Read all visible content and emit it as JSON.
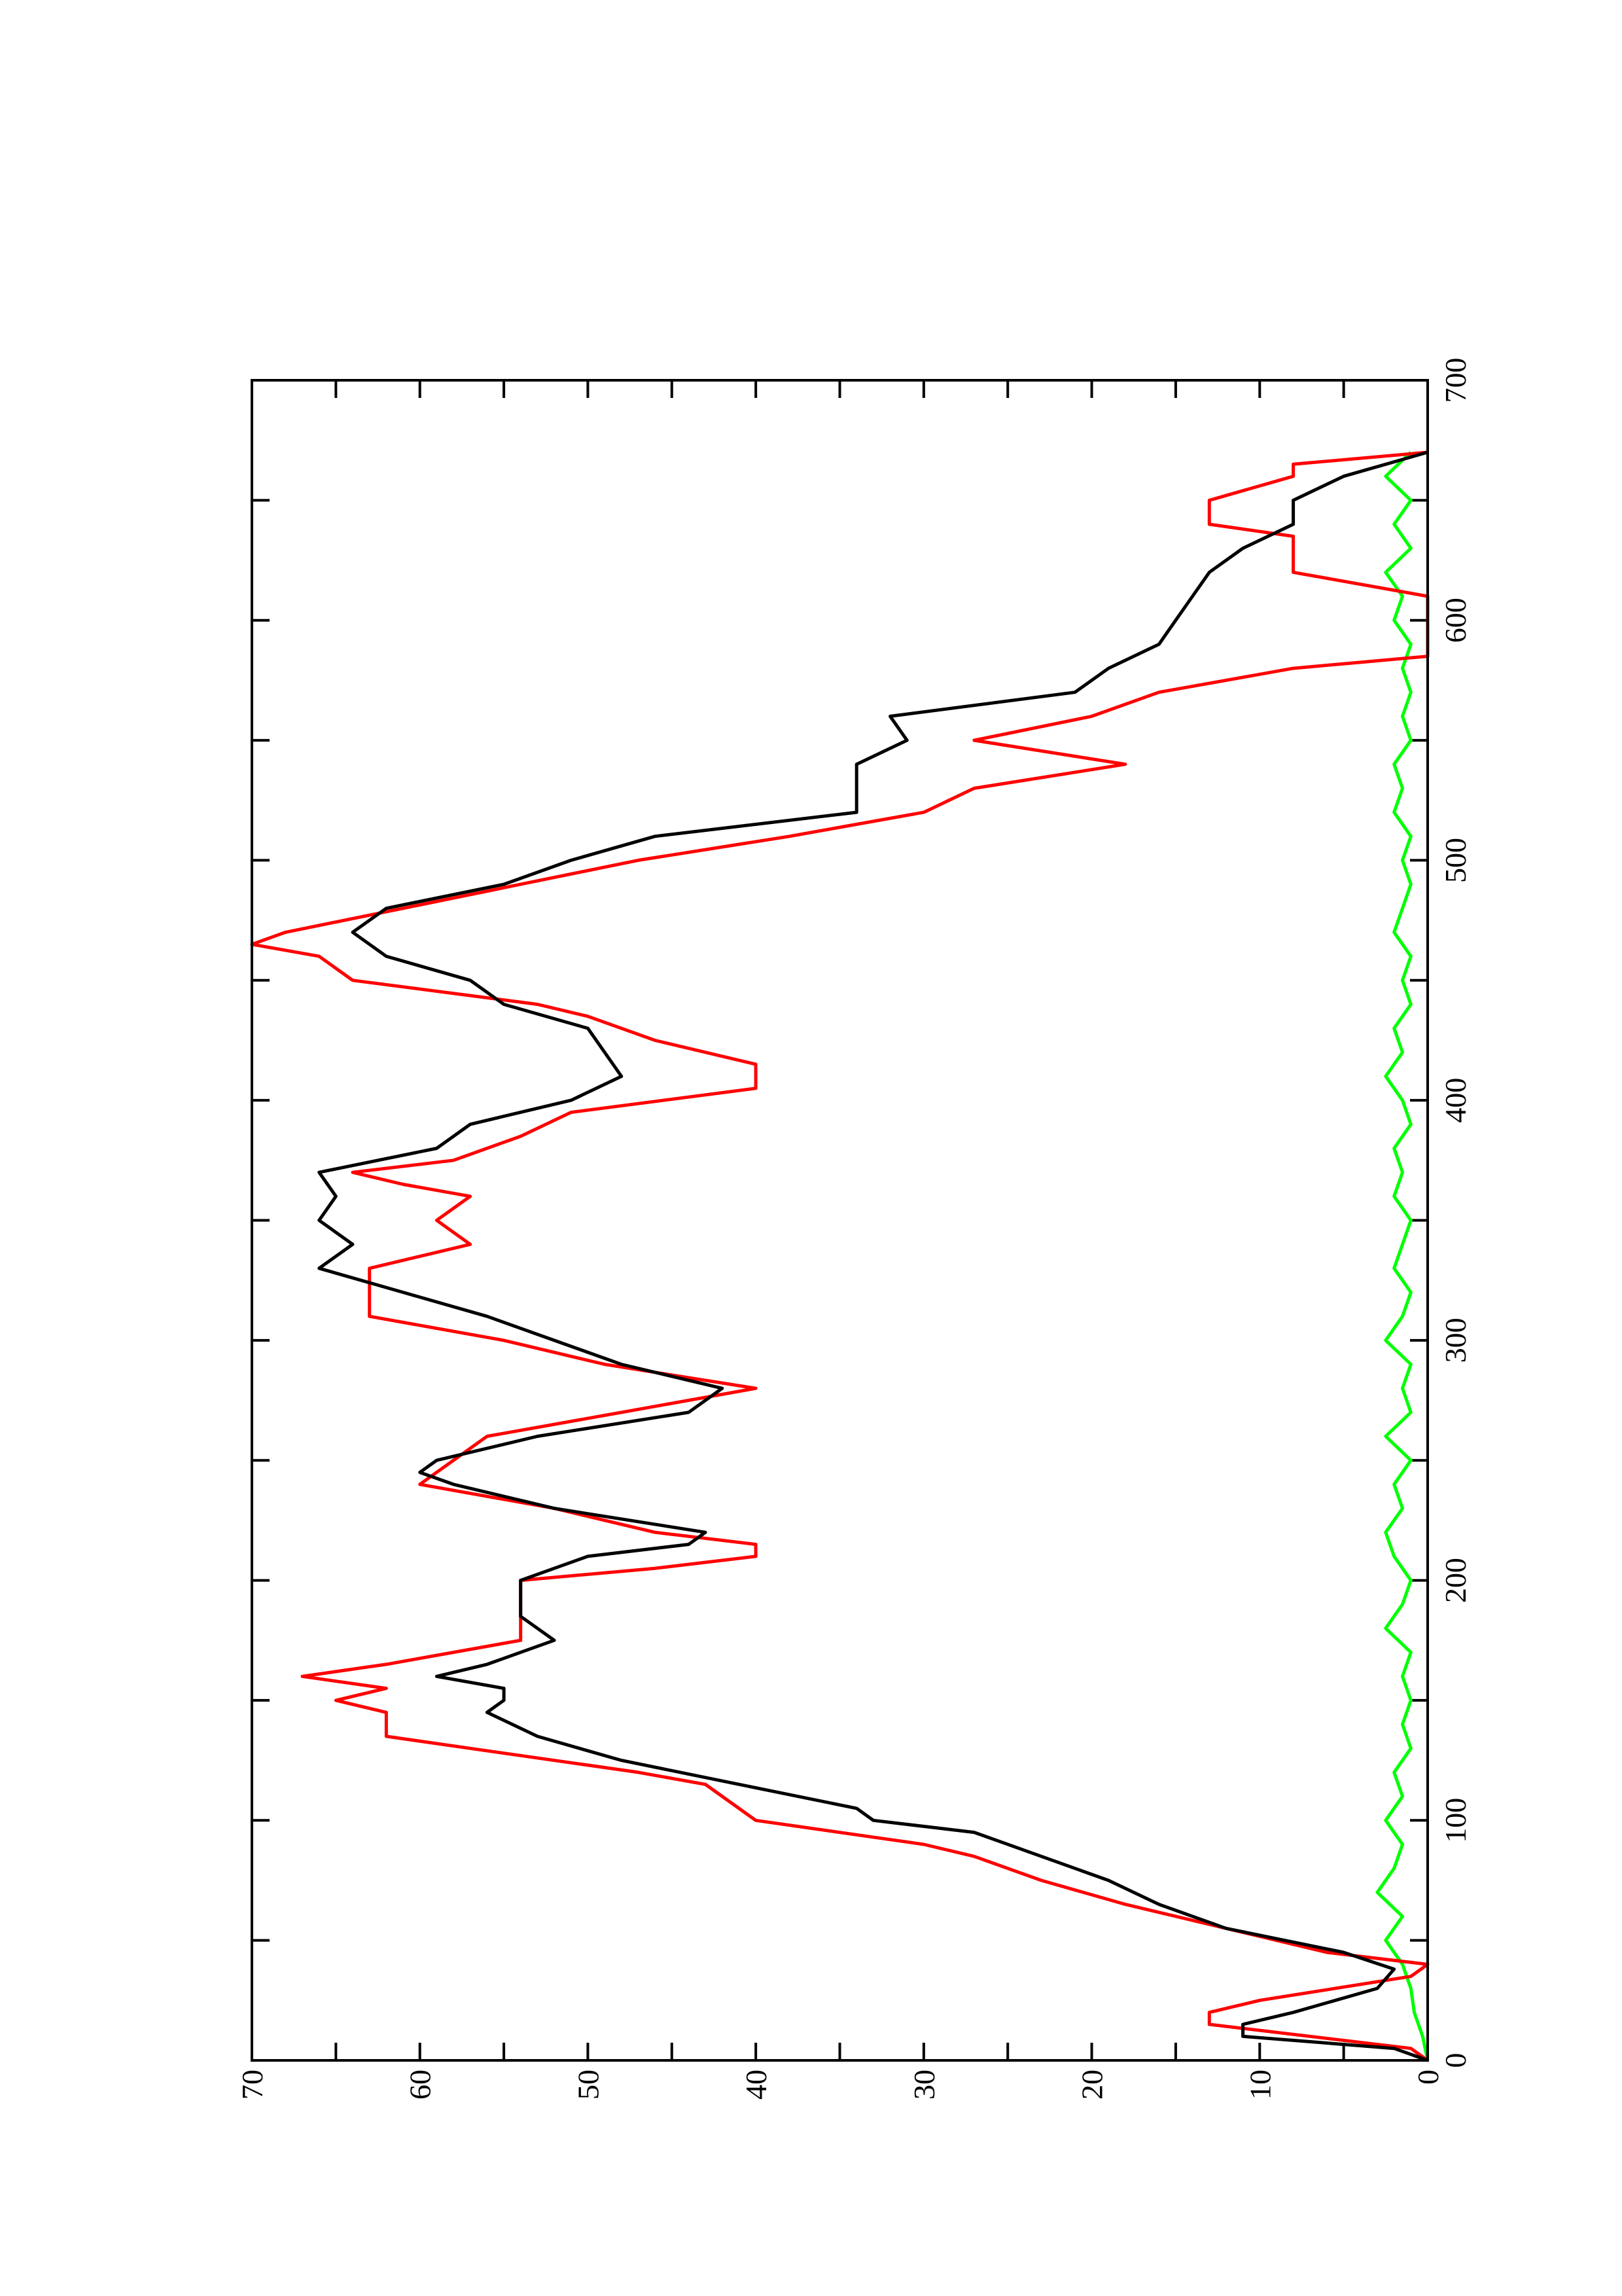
{
  "chart_data": {
    "type": "line",
    "xlim": [
      0,
      700
    ],
    "xticks": [
      0,
      100,
      200,
      300,
      400,
      500,
      600,
      700
    ],
    "xminor": [
      50,
      150,
      250,
      350,
      450,
      550,
      650
    ],
    "ylim": [
      0,
      70
    ],
    "yticks": [
      0,
      10,
      20,
      30,
      40,
      50,
      60,
      70
    ],
    "yminor": [
      5,
      15,
      25,
      35,
      45,
      55,
      65
    ],
    "series": [
      {
        "color": "#000000",
        "x": [
          0,
          5,
          10,
          15,
          20,
          30,
          38,
          45,
          55,
          65,
          75,
          85,
          95,
          100,
          105,
          115,
          125,
          135,
          145,
          150,
          155,
          160,
          165,
          175,
          185,
          200,
          210,
          215,
          220,
          230,
          240,
          245,
          250,
          260,
          270,
          280,
          290,
          300,
          310,
          320,
          330,
          340,
          350,
          360,
          370,
          380,
          390,
          400,
          410,
          420,
          430,
          440,
          450,
          460,
          470,
          480,
          490,
          500,
          510,
          520,
          530,
          540,
          550,
          560,
          570,
          580,
          590,
          600,
          610,
          620,
          630,
          640,
          650,
          660,
          670
        ],
        "values": [
          0,
          2,
          11,
          11,
          8,
          3,
          2,
          5,
          12,
          16,
          19,
          23,
          27,
          33,
          34,
          41,
          48,
          53,
          56,
          55,
          55,
          59,
          56,
          52,
          54,
          54,
          50,
          44,
          43,
          52,
          58,
          60,
          59,
          53,
          44,
          42,
          48,
          52,
          56,
          61,
          66,
          64,
          66,
          65,
          66,
          59,
          57,
          51,
          48,
          49,
          50,
          55,
          57,
          62,
          64,
          62,
          55,
          51,
          46,
          34,
          34,
          34,
          31,
          32,
          21,
          19,
          16,
          15,
          14,
          13,
          11,
          8,
          8,
          5,
          0
        ]
      },
      {
        "color": "#ff0000",
        "x": [
          0,
          5,
          15,
          20,
          25,
          35,
          40,
          45,
          55,
          65,
          75,
          85,
          90,
          100,
          115,
          120,
          130,
          135,
          145,
          150,
          155,
          160,
          165,
          175,
          185,
          200,
          205,
          210,
          215,
          220,
          230,
          240,
          250,
          260,
          270,
          280,
          290,
          300,
          310,
          320,
          330,
          340,
          350,
          360,
          365,
          370,
          375,
          385,
          395,
          405,
          415,
          425,
          435,
          440,
          450,
          460,
          465,
          470,
          480,
          490,
          500,
          510,
          520,
          530,
          540,
          550,
          560,
          570,
          580,
          585,
          610,
          620,
          635,
          640,
          650,
          660,
          665,
          670
        ],
        "values": [
          0,
          1,
          13,
          13,
          10,
          1,
          0,
          6,
          12,
          18,
          23,
          27,
          30,
          40,
          43,
          47,
          57,
          62,
          62,
          65,
          62,
          67,
          62,
          54,
          54,
          54,
          46,
          40,
          40,
          46,
          52,
          60,
          58,
          56,
          48,
          40,
          49,
          55,
          63,
          63,
          63,
          57,
          59,
          57,
          61,
          64,
          58,
          54,
          51,
          40,
          40,
          46,
          50,
          53,
          64,
          66,
          70,
          68,
          61,
          54,
          47,
          38,
          30,
          27,
          18,
          27,
          20,
          16,
          8,
          0,
          0,
          8,
          8,
          13,
          13,
          8,
          8,
          0
        ]
      },
      {
        "color": "#00ff00",
        "x": [
          0,
          10,
          20,
          30,
          40,
          50,
          60,
          70,
          80,
          90,
          100,
          110,
          120,
          130,
          140,
          150,
          160,
          170,
          180,
          190,
          200,
          210,
          220,
          230,
          240,
          250,
          260,
          270,
          280,
          290,
          300,
          310,
          320,
          330,
          340,
          350,
          360,
          370,
          380,
          390,
          400,
          410,
          420,
          430,
          440,
          450,
          460,
          470,
          480,
          490,
          500,
          510,
          520,
          530,
          540,
          550,
          560,
          570,
          580,
          590,
          600,
          610,
          620,
          630,
          640,
          650,
          660,
          670
        ],
        "values": [
          0,
          0.3,
          0.8,
          1,
          1.5,
          2.5,
          1.5,
          3,
          2,
          1.5,
          2.5,
          1.5,
          2,
          1,
          1.5,
          1,
          1.5,
          1,
          2.5,
          1.5,
          1,
          2,
          2.5,
          1.5,
          2,
          1,
          2.5,
          1,
          1.5,
          1,
          2.5,
          1.5,
          1,
          2,
          1.5,
          1,
          2,
          1.5,
          2,
          1,
          1.5,
          2.5,
          1.5,
          2,
          1,
          1.5,
          1,
          2,
          1.5,
          1,
          1.5,
          1,
          2,
          1.5,
          2,
          1,
          1.5,
          1,
          1.5,
          1,
          2,
          1.5,
          2.5,
          1,
          2,
          1,
          2.5,
          1
        ]
      }
    ]
  }
}
